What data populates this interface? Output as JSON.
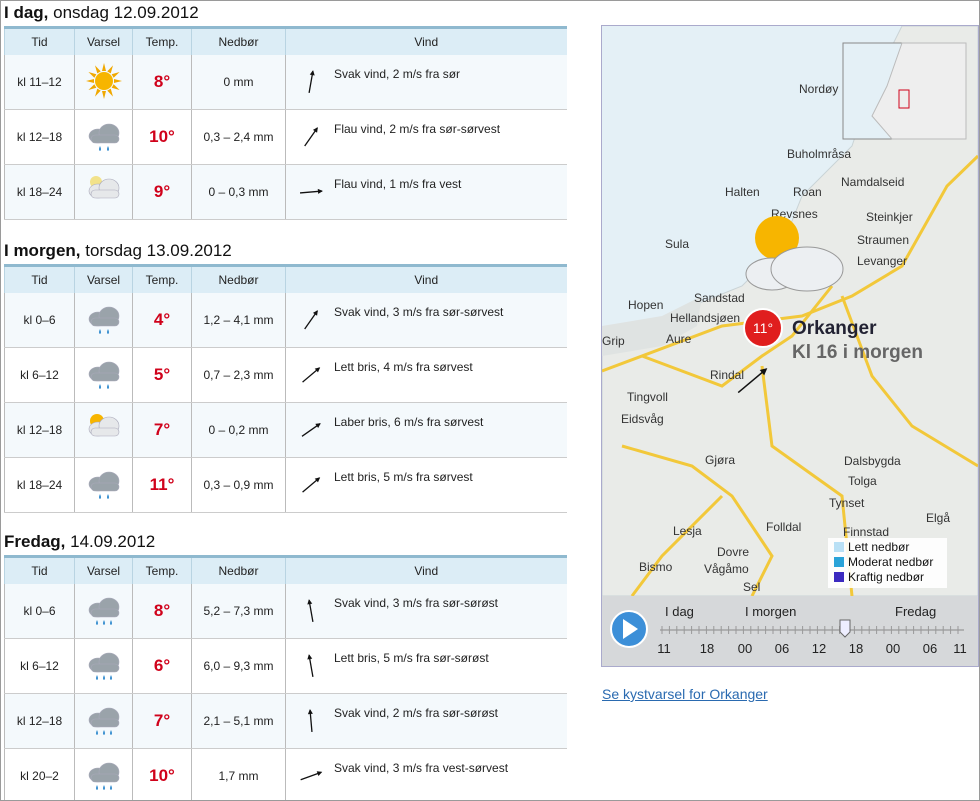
{
  "table_headers": [
    "Tid",
    "Varsel",
    "Temp.",
    "Nedbør",
    "Vind"
  ],
  "days": [
    {
      "title": "I dag,",
      "date": "onsdag 12.09.2012",
      "rows": [
        {
          "time": "kl 11–12",
          "temp": "8°",
          "precip": "0 mm",
          "wind": "Svak vind, 2 m/s fra sør"
        },
        {
          "time": "kl 12–18",
          "temp": "10°",
          "precip": "0,3 – 2,4 mm",
          "wind": "Flau vind, 2 m/s fra sør-sørvest"
        },
        {
          "time": "kl 18–24",
          "temp": "9°",
          "precip": "0 – 0,3 mm",
          "wind": "Flau vind, 1 m/s fra vest"
        }
      ]
    },
    {
      "title": "I morgen,",
      "date": "torsdag 13.09.2012",
      "rows": [
        {
          "time": "kl 0–6",
          "temp": "4°",
          "precip": "1,2 – 4,1 mm",
          "wind": "Svak vind, 3 m/s fra sør-sørvest"
        },
        {
          "time": "kl 6–12",
          "temp": "5°",
          "precip": "0,7 – 2,3 mm",
          "wind": "Lett bris, 4 m/s fra sørvest"
        },
        {
          "time": "kl 12–18",
          "temp": "7°",
          "precip": "0 – 0,2 mm",
          "wind": "Laber bris, 6 m/s fra sørvest"
        },
        {
          "time": "kl 18–24",
          "temp": "11°",
          "precip": "0,3 – 0,9 mm",
          "wind": "Lett bris, 5 m/s fra sørvest"
        }
      ]
    },
    {
      "title": "Fredag,",
      "date": "14.09.2012",
      "rows": [
        {
          "time": "kl 0–6",
          "temp": "8°",
          "precip": "5,2 – 7,3 mm",
          "wind": "Svak vind, 3 m/s fra sør-sørøst"
        },
        {
          "time": "kl 6–12",
          "temp": "6°",
          "precip": "6,0 – 9,3 mm",
          "wind": "Lett bris, 5 m/s fra sør-sørøst"
        },
        {
          "time": "kl 12–18",
          "temp": "7°",
          "precip": "2,1 – 5,1 mm",
          "wind": "Svak vind, 2 m/s fra sør-sørøst"
        },
        {
          "time": "kl 20–2",
          "temp": "10°",
          "precip": "1,7 mm",
          "wind": "Svak vind, 3 m/s fra vest-sørvest"
        }
      ]
    }
  ],
  "map": {
    "places": [
      "Nordøy",
      "Buholmråsa",
      "Namdalseid",
      "Halten",
      "Roan",
      "Revsnes",
      "Steinkjer",
      "Straumen",
      "Sula",
      "Levanger",
      "Sandstad",
      "Hellandsjøen",
      "Hopen",
      "Aure",
      "Grip",
      "Rindal",
      "Tingvoll",
      "Eidsvåg",
      "Gjøra",
      "Dalsbygda",
      "Tolga",
      "Tynset",
      "Lesja",
      "Folldal",
      "Finnstad",
      "Elgå",
      "Dovre",
      "Bismo",
      "Vågåmo",
      "Sel"
    ],
    "marker_temp": "11°",
    "place": "Orkanger",
    "time": "Kl 16 i morgen",
    "legend": [
      "Lett nedbør",
      "Moderat nedbør",
      "Kraftig nedbør"
    ],
    "timeline_days": [
      "I dag",
      "I morgen",
      "Fredag"
    ],
    "timeline_hours": [
      "11",
      "18",
      "00",
      "06",
      "12",
      "18",
      "00",
      "06",
      "11"
    ]
  },
  "link": "Se kystvarsel for Orkanger"
}
